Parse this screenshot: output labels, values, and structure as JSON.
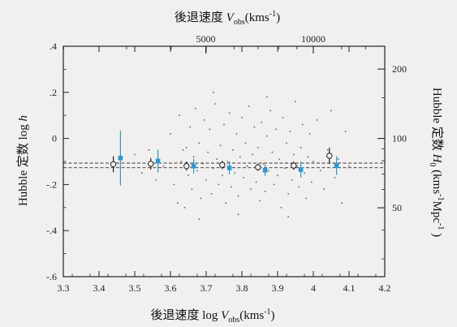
{
  "chart_data": {
    "type": "scatter",
    "title": "",
    "xlabel": "後退速度 log V_obs(kms⁻¹)",
    "xlabel_parts": {
      "prefix": "後退速度 log ",
      "var": "V",
      "sub": "obs",
      "mid": "(kms",
      "sup": "-1",
      "suffix": ")"
    },
    "ylabel": "Hubble 定数 log h",
    "ylabel_parts": {
      "prefix": "Hubble 定数 log ",
      "var": "h"
    },
    "top_xlabel": "後退速度 V_obs(kms⁻¹)",
    "top_xlabel_parts": {
      "prefix": "後退速度 ",
      "var": "V",
      "sub": "obs",
      "mid": "(kms",
      "sup": "-1",
      "suffix": ")"
    },
    "right_ylabel": "Hubble 定数 H_0 (kms⁻¹Mpc⁻¹)",
    "right_ylabel_parts": {
      "prefix": "Hubble 定数 ",
      "var": "H",
      "sub": "0",
      "mid1": " (kms",
      "sup1": "-1",
      "mid2": "Mpc",
      "sup2": "-1",
      "suffix": " )"
    },
    "xlim": [
      3.3,
      4.2
    ],
    "ylim": [
      -0.6,
      0.4
    ],
    "x_ticks": [
      3.3,
      3.4,
      3.5,
      3.6,
      3.7,
      3.8,
      3.9,
      4,
      4.1,
      4.2
    ],
    "x_tick_labels": [
      "3.3",
      "3.4",
      "3.5",
      "3.6",
      "3.7",
      "3.8",
      "3.9",
      "4",
      "4.1",
      "4.2"
    ],
    "y_ticks": [
      -0.6,
      -0.4,
      -0.2,
      0,
      0.2,
      0.4
    ],
    "y_tick_labels": [
      "-.6",
      "-.4",
      "-.2",
      "0",
      ".2",
      ".4"
    ],
    "top_ticks": [
      5000,
      10000
    ],
    "top_tick_labels": [
      "5000",
      "10000"
    ],
    "right_ticks": [
      200,
      100,
      50
    ],
    "right_tick_labels": [
      "200",
      "100",
      "50"
    ],
    "reference_lines": [
      -0.107,
      -0.127
    ],
    "series": [
      {
        "marker": "open-circle",
        "color": "#222222",
        "points": [
          {
            "x": 3.44,
            "y": -0.112,
            "err": 0.035
          },
          {
            "x": 3.545,
            "y": -0.11,
            "err": 0.025
          },
          {
            "x": 3.645,
            "y": -0.12,
            "err": 0.02
          },
          {
            "x": 3.745,
            "y": -0.115,
            "err": 0.018
          },
          {
            "x": 3.845,
            "y": -0.125,
            "err": 0.015
          },
          {
            "x": 3.945,
            "y": -0.118,
            "err": 0.018
          },
          {
            "x": 4.045,
            "y": -0.075,
            "err": 0.035
          }
        ]
      },
      {
        "marker": "filled-square",
        "color": "#2a9ad1",
        "points": [
          {
            "x": 3.46,
            "y": -0.085,
            "err": 0.12
          },
          {
            "x": 3.565,
            "y": -0.098,
            "err": 0.05
          },
          {
            "x": 3.665,
            "y": -0.12,
            "err": 0.032
          },
          {
            "x": 3.765,
            "y": -0.128,
            "err": 0.028
          },
          {
            "x": 3.865,
            "y": -0.138,
            "err": 0.025
          },
          {
            "x": 3.965,
            "y": -0.135,
            "err": 0.035
          },
          {
            "x": 4.065,
            "y": -0.118,
            "err": 0.04
          }
        ]
      },
      {
        "marker": "dot",
        "color": "#333333",
        "points": [
          {
            "x": 3.5,
            "y": -0.07
          },
          {
            "x": 3.52,
            "y": -0.15
          },
          {
            "x": 3.54,
            "y": -0.05
          },
          {
            "x": 3.56,
            "y": -0.18
          },
          {
            "x": 3.58,
            "y": -0.12
          },
          {
            "x": 3.6,
            "y": 0.02
          },
          {
            "x": 3.61,
            "y": -0.2
          },
          {
            "x": 3.62,
            "y": -0.28
          },
          {
            "x": 3.625,
            "y": 0.1
          },
          {
            "x": 3.63,
            "y": -0.1
          },
          {
            "x": 3.635,
            "y": -0.05
          },
          {
            "x": 3.64,
            "y": -0.3
          },
          {
            "x": 3.645,
            "y": -0.04
          },
          {
            "x": 3.65,
            "y": -0.16
          },
          {
            "x": 3.655,
            "y": 0.05
          },
          {
            "x": 3.66,
            "y": -0.22
          },
          {
            "x": 3.665,
            "y": -0.08
          },
          {
            "x": 3.67,
            "y": 0.13
          },
          {
            "x": 3.675,
            "y": -0.14
          },
          {
            "x": 3.68,
            "y": -0.02
          },
          {
            "x": 3.685,
            "y": -0.26
          },
          {
            "x": 3.69,
            "y": -0.11
          },
          {
            "x": 3.695,
            "y": 0.08
          },
          {
            "x": 3.7,
            "y": -0.18
          },
          {
            "x": 3.705,
            "y": -0.06
          },
          {
            "x": 3.71,
            "y": 0.04
          },
          {
            "x": 3.715,
            "y": -0.24
          },
          {
            "x": 3.72,
            "y": -0.13
          },
          {
            "x": 3.725,
            "y": 0.15
          },
          {
            "x": 3.73,
            "y": -0.09
          },
          {
            "x": 3.735,
            "y": -0.2
          },
          {
            "x": 3.74,
            "y": -0.03
          },
          {
            "x": 3.745,
            "y": -0.16
          },
          {
            "x": 3.75,
            "y": 0.06
          },
          {
            "x": 3.755,
            "y": -0.28
          },
          {
            "x": 3.76,
            "y": -0.1
          },
          {
            "x": 3.765,
            "y": 0.11
          },
          {
            "x": 3.77,
            "y": -0.21
          },
          {
            "x": 3.775,
            "y": -0.05
          },
          {
            "x": 3.78,
            "y": -0.15
          },
          {
            "x": 3.785,
            "y": 0.02
          },
          {
            "x": 3.79,
            "y": -0.25
          },
          {
            "x": 3.795,
            "y": -0.08
          },
          {
            "x": 3.8,
            "y": 0.09
          },
          {
            "x": 3.805,
            "y": -0.17
          },
          {
            "x": 3.81,
            "y": -0.02
          },
          {
            "x": 3.815,
            "y": -0.12
          },
          {
            "x": 3.82,
            "y": 0.14
          },
          {
            "x": 3.825,
            "y": -0.22
          },
          {
            "x": 3.83,
            "y": -0.07
          },
          {
            "x": 3.835,
            "y": 0.05
          },
          {
            "x": 3.84,
            "y": -0.19
          },
          {
            "x": 3.845,
            "y": -0.04
          },
          {
            "x": 3.85,
            "y": -0.27
          },
          {
            "x": 3.855,
            "y": 0.07
          },
          {
            "x": 3.86,
            "y": -0.11
          },
          {
            "x": 3.865,
            "y": -0.23
          },
          {
            "x": 3.87,
            "y": 0.01
          },
          {
            "x": 3.875,
            "y": -0.14
          },
          {
            "x": 3.88,
            "y": 0.12
          },
          {
            "x": 3.885,
            "y": -0.06
          },
          {
            "x": 3.89,
            "y": -0.2
          },
          {
            "x": 3.895,
            "y": 0.04
          },
          {
            "x": 3.9,
            "y": -0.16
          },
          {
            "x": 3.905,
            "y": -0.09
          },
          {
            "x": 3.91,
            "y": -0.3
          },
          {
            "x": 3.915,
            "y": 0.09
          },
          {
            "x": 3.92,
            "y": -0.13
          },
          {
            "x": 3.925,
            "y": -0.02
          },
          {
            "x": 3.93,
            "y": -0.24
          },
          {
            "x": 3.935,
            "y": 0.03
          },
          {
            "x": 3.94,
            "y": -0.18
          },
          {
            "x": 3.945,
            "y": -0.07
          },
          {
            "x": 3.95,
            "y": 0.16
          },
          {
            "x": 3.955,
            "y": -0.12
          },
          {
            "x": 3.96,
            "y": -0.21
          },
          {
            "x": 3.965,
            "y": -0.04
          },
          {
            "x": 3.97,
            "y": 0.06
          },
          {
            "x": 3.975,
            "y": -0.15
          },
          {
            "x": 3.98,
            "y": -0.26
          },
          {
            "x": 3.985,
            "y": -0.08
          },
          {
            "x": 3.99,
            "y": 0.02
          },
          {
            "x": 3.995,
            "y": -0.19
          },
          {
            "x": 4.0,
            "y": -0.1
          },
          {
            "x": 4.01,
            "y": 0.08
          },
          {
            "x": 4.02,
            "y": -0.14
          },
          {
            "x": 4.03,
            "y": -0.22
          },
          {
            "x": 4.04,
            "y": -0.05
          },
          {
            "x": 4.05,
            "y": 0.12
          },
          {
            "x": 4.06,
            "y": -0.17
          },
          {
            "x": 4.07,
            "y": -0.09
          },
          {
            "x": 4.08,
            "y": -0.28
          },
          {
            "x": 4.09,
            "y": 0.03
          },
          {
            "x": 4.1,
            "y": -0.12
          },
          {
            "x": 3.68,
            "y": -0.35
          },
          {
            "x": 3.72,
            "y": 0.2
          },
          {
            "x": 3.79,
            "y": -0.33
          },
          {
            "x": 3.87,
            "y": 0.18
          },
          {
            "x": 3.93,
            "y": -0.34
          }
        ]
      }
    ]
  }
}
